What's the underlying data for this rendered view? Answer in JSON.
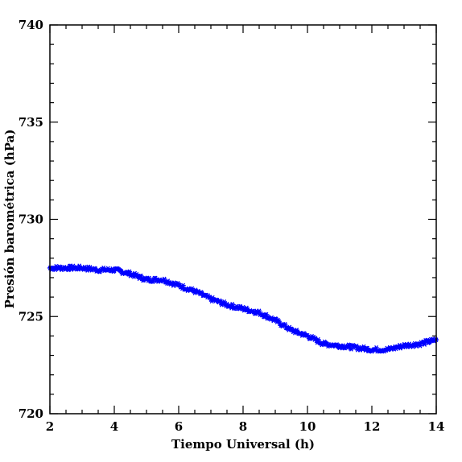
{
  "chart_data": {
    "type": "scatter",
    "title": "",
    "xlabel": "Tiempo Universal (h)",
    "ylabel": "Presión barométrica (hPa)",
    "xlim": [
      2,
      14
    ],
    "ylim": [
      720,
      740
    ],
    "xticks": [
      2,
      4,
      6,
      8,
      10,
      12,
      14
    ],
    "yticks": [
      720,
      725,
      730,
      735,
      740
    ],
    "xtick_labels": [
      "2",
      "4",
      "6",
      "8",
      "10",
      "12",
      "14"
    ],
    "ytick_labels": [
      "720",
      "725",
      "730",
      "735",
      "740"
    ],
    "grid": false,
    "marker": "asterisk",
    "series": [
      {
        "color": "#0000ff",
        "x": [
          2.0,
          2.5,
          3.0,
          3.5,
          4.0,
          4.5,
          5.0,
          5.5,
          6.0,
          6.5,
          7.0,
          7.5,
          8.0,
          8.5,
          9.0,
          9.5,
          10.0,
          10.5,
          11.0,
          11.5,
          12.0,
          12.5,
          13.0,
          13.5,
          14.0
        ],
        "y": [
          727.5,
          727.5,
          727.5,
          727.4,
          727.4,
          727.2,
          726.9,
          726.9,
          726.6,
          726.3,
          725.9,
          725.6,
          725.4,
          725.2,
          724.8,
          724.3,
          724.0,
          723.6,
          723.5,
          723.4,
          723.3,
          723.3,
          723.5,
          723.6,
          723.8
        ]
      }
    ]
  }
}
